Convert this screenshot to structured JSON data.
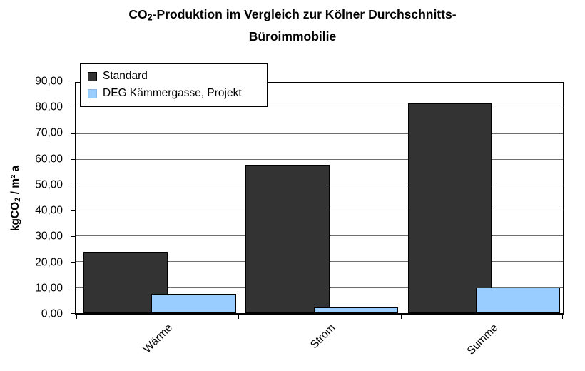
{
  "chart_data": {
    "type": "bar",
    "title": "CO2-Produktion im Vergleich zur Kölner Durchschnitts-Büroimmobilie",
    "title_lines": {
      "line1_pre_sub": "CO",
      "line1_sub": "2",
      "line1_post_sub": "-Produktion im Vergleich zur Kölner Durchschnitts-",
      "line2": "Büroimmobilie"
    },
    "ylabel": "kgCO2 / m² a",
    "ylabel_parts": {
      "pre": "kgCO",
      "sub": "2",
      "post": " / m² a"
    },
    "categories": [
      "Wärme",
      "Strom",
      "Summe"
    ],
    "series": [
      {
        "name": "Standard",
        "color": "#333333",
        "values": [
          24,
          58,
          82
        ]
      },
      {
        "name": "DEG Kämmergasse, Projekt",
        "color": "#99ccff",
        "values": [
          7.5,
          2.5,
          10
        ]
      }
    ],
    "ylim": [
      0,
      90
    ],
    "ytick_step": 10,
    "ytick_labels": [
      "0,00",
      "10,00",
      "20,00",
      "30,00",
      "40,00",
      "50,00",
      "60,00",
      "70,00",
      "80,00",
      "90,00"
    ],
    "grid": true,
    "legend_position": "top-left-overlay",
    "colors": {
      "background": "#ffffff",
      "gridline": "#6f6f6f",
      "axis": "#000000"
    }
  }
}
